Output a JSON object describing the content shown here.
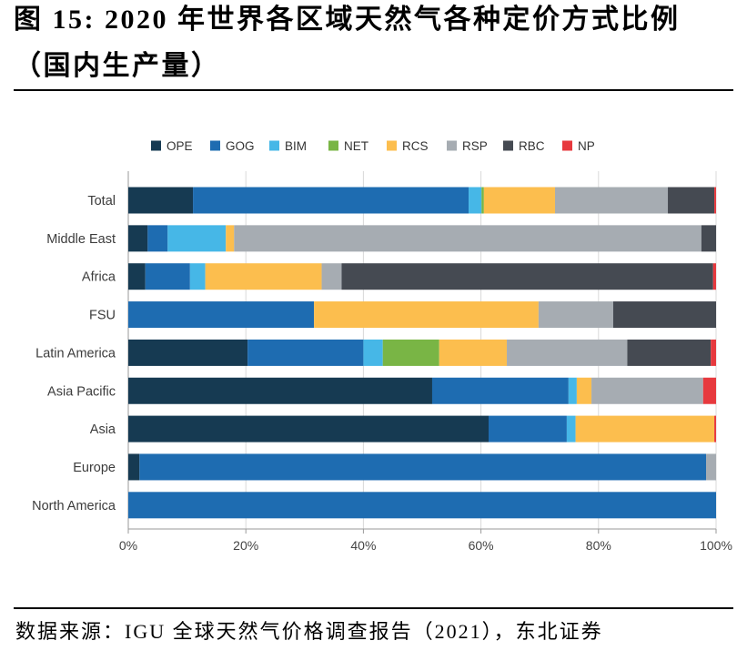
{
  "figure": {
    "title_line1": "图 15: 2020 年世界各区域天然气各种定价方式比例",
    "title_line2": "（国内生产量）",
    "source": "数据来源：IGU 全球天然气价格调查报告（2021），东北证券"
  },
  "chart_data": {
    "type": "bar",
    "orientation": "horizontal",
    "stacked": true,
    "categories": [
      "Total",
      "Middle East",
      "Africa",
      "FSU",
      "Latin America",
      "Asia Pacific",
      "Asia",
      "Europe",
      "North America"
    ],
    "series": [
      {
        "name": "OPE",
        "color": "#163a52",
        "values": [
          11.0,
          3.3,
          2.9,
          0,
          20.3,
          51.7,
          61.3,
          1.9,
          0
        ]
      },
      {
        "name": "GOG",
        "color": "#1e6cb1",
        "values": [
          46.9,
          3.4,
          7.6,
          31.6,
          19.7,
          23.2,
          13.3,
          96.4,
          100
        ]
      },
      {
        "name": "BIM",
        "color": "#46b7e7",
        "values": [
          2.2,
          9.9,
          2.6,
          0,
          3.3,
          1.4,
          1.5,
          0,
          0
        ]
      },
      {
        "name": "NET",
        "color": "#79b545",
        "values": [
          0.4,
          0,
          0,
          0,
          9.6,
          0,
          0,
          0,
          0
        ]
      },
      {
        "name": "RCS",
        "color": "#fcbe4e",
        "values": [
          12.1,
          1.4,
          19.8,
          38.2,
          11.5,
          2.5,
          23.6,
          0,
          0
        ]
      },
      {
        "name": "RSP",
        "color": "#a6acb2",
        "values": [
          19.2,
          79.5,
          3.4,
          12.7,
          20.5,
          19.0,
          0,
          1.7,
          0
        ]
      },
      {
        "name": "RBC",
        "color": "#454a52",
        "values": [
          7.9,
          2.5,
          63.2,
          17.5,
          14.2,
          0,
          0,
          0,
          0
        ]
      },
      {
        "name": "NP",
        "color": "#e7393e",
        "values": [
          0.3,
          0,
          0.5,
          0,
          0.9,
          2.2,
          0.3,
          0,
          0
        ]
      }
    ],
    "x_ticks": [
      0,
      20,
      40,
      60,
      80,
      100
    ],
    "x_tick_labels": [
      "0%",
      "20%",
      "40%",
      "60%",
      "80%",
      "100%"
    ],
    "xlim": [
      0,
      100
    ],
    "xlabel": "",
    "ylabel": "",
    "grid": "vertical",
    "legend": "top"
  }
}
